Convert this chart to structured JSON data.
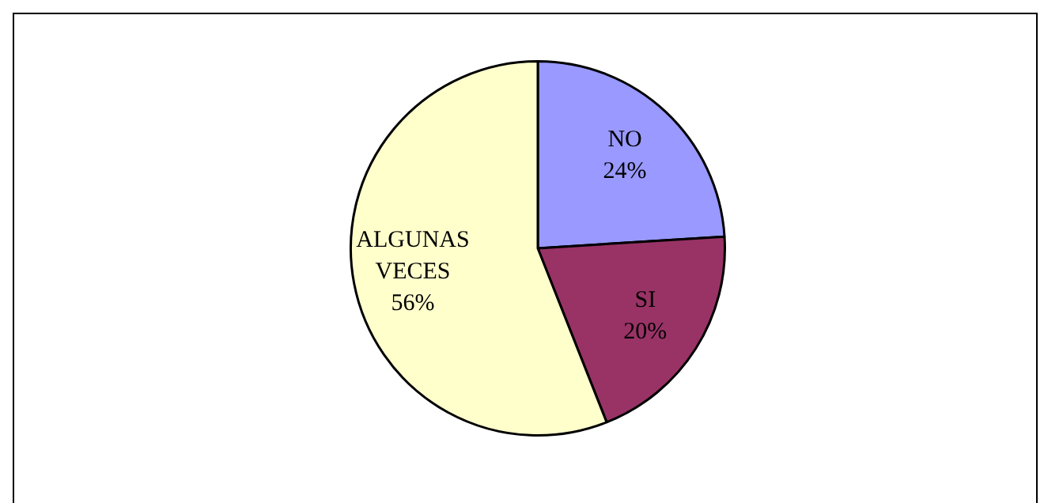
{
  "chart_data": {
    "type": "pie",
    "categories": [
      "NO",
      "SI",
      "ALGUNAS VECES"
    ],
    "values": [
      24,
      20,
      56
    ],
    "colors": [
      "#9999ff",
      "#993366",
      "#ffffcc"
    ],
    "value_labels": [
      "24%",
      "20%",
      "56%"
    ],
    "legend": false
  }
}
